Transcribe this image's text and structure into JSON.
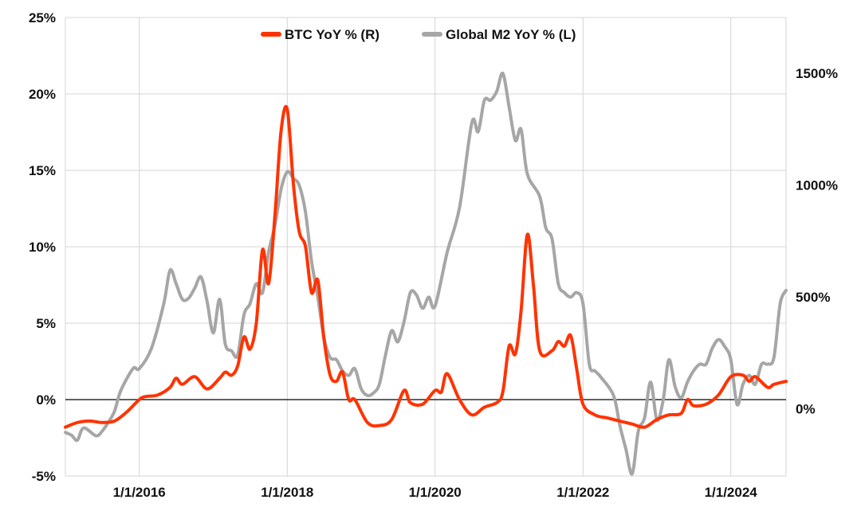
{
  "chart_data": {
    "type": "line",
    "title": "",
    "xlabel": "",
    "grid": true,
    "legend_position": "top-center",
    "x_axis": {
      "type": "date",
      "range": [
        "2015-01-01",
        "2024-09-30"
      ],
      "ticks": [
        "2016-01-01",
        "2018-01-01",
        "2020-01-01",
        "2022-01-01",
        "2024-01-01"
      ],
      "tick_labels": [
        "1/1/2016",
        "1/1/2018",
        "1/1/2020",
        "1/1/2022",
        "1/1/2024"
      ]
    },
    "left_axis": {
      "range": [
        -5,
        25
      ],
      "ticks": [
        -5,
        0,
        5,
        10,
        15,
        20,
        25
      ],
      "tick_labels": [
        "-5%",
        "0%",
        "5%",
        "10%",
        "15%",
        "20%",
        "25%"
      ],
      "zero_line": true
    },
    "right_axis": {
      "range": [
        -300,
        1750
      ],
      "ticks": [
        0,
        500,
        1000,
        1500
      ],
      "tick_labels": [
        "0%",
        "500%",
        "1000%",
        "1500%"
      ]
    },
    "series": [
      {
        "name": "BTC YoY % (R)",
        "axis": "left",
        "color": "#ff3300",
        "points": [
          [
            "2015-01-01",
            -1.8
          ],
          [
            "2015-03-01",
            -1.5
          ],
          [
            "2015-05-01",
            -1.4
          ],
          [
            "2015-07-01",
            -1.5
          ],
          [
            "2015-09-01",
            -1.4
          ],
          [
            "2015-11-01",
            -0.8
          ],
          [
            "2016-01-01",
            0.0
          ],
          [
            "2016-02-01",
            0.2
          ],
          [
            "2016-04-01",
            0.3
          ],
          [
            "2016-06-01",
            0.8
          ],
          [
            "2016-07-01",
            1.4
          ],
          [
            "2016-08-01",
            1.0
          ],
          [
            "2016-10-01",
            1.5
          ],
          [
            "2016-12-01",
            0.7
          ],
          [
            "2017-02-01",
            1.4
          ],
          [
            "2017-03-01",
            1.8
          ],
          [
            "2017-04-01",
            1.6
          ],
          [
            "2017-05-01",
            2.2
          ],
          [
            "2017-06-01",
            4.1
          ],
          [
            "2017-07-01",
            3.3
          ],
          [
            "2017-08-01",
            5.0
          ],
          [
            "2017-09-01",
            9.8
          ],
          [
            "2017-10-01",
            7.6
          ],
          [
            "2017-11-01",
            12.0
          ],
          [
            "2017-12-01",
            17.5
          ],
          [
            "2018-01-01",
            19.0
          ],
          [
            "2018-02-01",
            14.0
          ],
          [
            "2018-03-01",
            11.0
          ],
          [
            "2018-04-01",
            10.0
          ],
          [
            "2018-05-01",
            7.0
          ],
          [
            "2018-06-01",
            7.8
          ],
          [
            "2018-07-01",
            4.0
          ],
          [
            "2018-08-01",
            1.6
          ],
          [
            "2018-09-01",
            1.2
          ],
          [
            "2018-10-01",
            1.8
          ],
          [
            "2018-11-01",
            0.0
          ],
          [
            "2018-12-01",
            0.0
          ],
          [
            "2019-02-01",
            -1.5
          ],
          [
            "2019-04-01",
            -1.7
          ],
          [
            "2019-06-01",
            -1.3
          ],
          [
            "2019-08-01",
            0.6
          ],
          [
            "2019-09-01",
            -0.2
          ],
          [
            "2019-11-01",
            -0.3
          ],
          [
            "2020-01-01",
            0.6
          ],
          [
            "2020-02-01",
            0.5
          ],
          [
            "2020-03-01",
            1.7
          ],
          [
            "2020-05-01",
            0.0
          ],
          [
            "2020-07-01",
            -1.0
          ],
          [
            "2020-09-01",
            -0.5
          ],
          [
            "2020-11-01",
            -0.2
          ],
          [
            "2020-12-01",
            0.5
          ],
          [
            "2021-01-01",
            3.5
          ],
          [
            "2021-02-01",
            3.0
          ],
          [
            "2021-03-01",
            5.8
          ],
          [
            "2021-04-01",
            10.8
          ],
          [
            "2021-05-01",
            7.5
          ],
          [
            "2021-06-01",
            3.2
          ],
          [
            "2021-08-01",
            3.2
          ],
          [
            "2021-09-01",
            3.8
          ],
          [
            "2021-10-01",
            3.5
          ],
          [
            "2021-11-01",
            4.2
          ],
          [
            "2021-12-01",
            2.0
          ],
          [
            "2022-01-01",
            -0.3
          ],
          [
            "2022-03-01",
            -1.0
          ],
          [
            "2022-05-01",
            -1.2
          ],
          [
            "2022-07-01",
            -1.4
          ],
          [
            "2022-09-01",
            -1.6
          ],
          [
            "2022-11-01",
            -1.8
          ],
          [
            "2023-01-01",
            -1.3
          ],
          [
            "2023-03-01",
            -1.0
          ],
          [
            "2023-05-01",
            -0.9
          ],
          [
            "2023-06-01",
            0.0
          ],
          [
            "2023-07-01",
            -0.4
          ],
          [
            "2023-09-01",
            -0.3
          ],
          [
            "2023-11-01",
            0.3
          ],
          [
            "2024-01-01",
            1.5
          ],
          [
            "2024-03-01",
            1.6
          ],
          [
            "2024-04-01",
            1.2
          ],
          [
            "2024-05-01",
            1.5
          ],
          [
            "2024-07-01",
            0.8
          ],
          [
            "2024-08-01",
            1.0
          ],
          [
            "2024-09-30",
            1.2
          ]
        ]
      },
      {
        "name": "Global M2 YoY % (L)",
        "axis": "right",
        "color": "#a6a6a6",
        "points": [
          [
            "2015-01-01",
            -105
          ],
          [
            "2015-02-01",
            -118
          ],
          [
            "2015-03-01",
            -140
          ],
          [
            "2015-04-01",
            -85
          ],
          [
            "2015-06-01",
            -120
          ],
          [
            "2015-07-01",
            -100
          ],
          [
            "2015-08-01",
            -60
          ],
          [
            "2015-09-01",
            -10
          ],
          [
            "2015-10-01",
            80
          ],
          [
            "2015-12-01",
            180
          ],
          [
            "2016-01-01",
            180
          ],
          [
            "2016-03-01",
            270
          ],
          [
            "2016-05-01",
            470
          ],
          [
            "2016-06-01",
            620
          ],
          [
            "2016-07-01",
            560
          ],
          [
            "2016-08-01",
            490
          ],
          [
            "2016-09-01",
            495
          ],
          [
            "2016-10-01",
            540
          ],
          [
            "2016-11-01",
            590
          ],
          [
            "2016-12-01",
            480
          ],
          [
            "2017-01-01",
            340
          ],
          [
            "2017-02-01",
            490
          ],
          [
            "2017-03-01",
            290
          ],
          [
            "2017-04-01",
            260
          ],
          [
            "2017-05-01",
            240
          ],
          [
            "2017-06-01",
            420
          ],
          [
            "2017-07-01",
            470
          ],
          [
            "2017-08-01",
            560
          ],
          [
            "2017-09-01",
            520
          ],
          [
            "2017-10-01",
            700
          ],
          [
            "2017-11-01",
            820
          ],
          [
            "2017-12-01",
            980
          ],
          [
            "2018-01-01",
            1060
          ],
          [
            "2018-02-01",
            1030
          ],
          [
            "2018-03-01",
            1000
          ],
          [
            "2018-04-01",
            880
          ],
          [
            "2018-05-01",
            660
          ],
          [
            "2018-06-01",
            500
          ],
          [
            "2018-07-01",
            320
          ],
          [
            "2018-08-01",
            230
          ],
          [
            "2018-09-01",
            220
          ],
          [
            "2018-10-01",
            170
          ],
          [
            "2018-11-01",
            150
          ],
          [
            "2018-12-01",
            180
          ],
          [
            "2019-01-01",
            90
          ],
          [
            "2019-02-01",
            60
          ],
          [
            "2019-03-01",
            70
          ],
          [
            "2019-04-01",
            110
          ],
          [
            "2019-05-01",
            240
          ],
          [
            "2019-06-01",
            350
          ],
          [
            "2019-07-01",
            300
          ],
          [
            "2019-08-01",
            390
          ],
          [
            "2019-09-01",
            520
          ],
          [
            "2019-10-01",
            510
          ],
          [
            "2019-11-01",
            450
          ],
          [
            "2019-12-01",
            500
          ],
          [
            "2020-01-01",
            460
          ],
          [
            "2020-03-01",
            700
          ],
          [
            "2020-05-01",
            900
          ],
          [
            "2020-07-01",
            1280
          ],
          [
            "2020-08-01",
            1240
          ],
          [
            "2020-09-01",
            1380
          ],
          [
            "2020-10-01",
            1380
          ],
          [
            "2020-11-01",
            1420
          ],
          [
            "2020-12-01",
            1500
          ],
          [
            "2021-01-01",
            1350
          ],
          [
            "2021-02-01",
            1200
          ],
          [
            "2021-03-01",
            1250
          ],
          [
            "2021-04-01",
            1050
          ],
          [
            "2021-06-01",
            950
          ],
          [
            "2021-07-01",
            810
          ],
          [
            "2021-08-01",
            760
          ],
          [
            "2021-09-01",
            560
          ],
          [
            "2021-10-01",
            520
          ],
          [
            "2021-11-01",
            500
          ],
          [
            "2021-12-01",
            520
          ],
          [
            "2022-01-01",
            470
          ],
          [
            "2022-02-01",
            200
          ],
          [
            "2022-03-01",
            170
          ],
          [
            "2022-04-01",
            140
          ],
          [
            "2022-06-01",
            60
          ],
          [
            "2022-07-01",
            -70
          ],
          [
            "2022-08-01",
            -180
          ],
          [
            "2022-09-01",
            -290
          ],
          [
            "2022-10-01",
            -100
          ],
          [
            "2022-11-01",
            -40
          ],
          [
            "2022-12-01",
            120
          ],
          [
            "2023-01-01",
            -50
          ],
          [
            "2023-02-01",
            40
          ],
          [
            "2023-03-01",
            220
          ],
          [
            "2023-04-01",
            100
          ],
          [
            "2023-05-01",
            50
          ],
          [
            "2023-06-01",
            120
          ],
          [
            "2023-07-01",
            170
          ],
          [
            "2023-08-01",
            200
          ],
          [
            "2023-09-01",
            200
          ],
          [
            "2023-10-01",
            270
          ],
          [
            "2023-11-01",
            310
          ],
          [
            "2023-12-01",
            280
          ],
          [
            "2024-01-01",
            220
          ],
          [
            "2024-02-01",
            20
          ],
          [
            "2024-03-01",
            110
          ],
          [
            "2024-04-01",
            150
          ],
          [
            "2024-05-01",
            110
          ],
          [
            "2024-06-01",
            200
          ],
          [
            "2024-07-01",
            200
          ],
          [
            "2024-08-01",
            230
          ],
          [
            "2024-09-01",
            470
          ],
          [
            "2024-09-30",
            530
          ]
        ]
      }
    ]
  }
}
